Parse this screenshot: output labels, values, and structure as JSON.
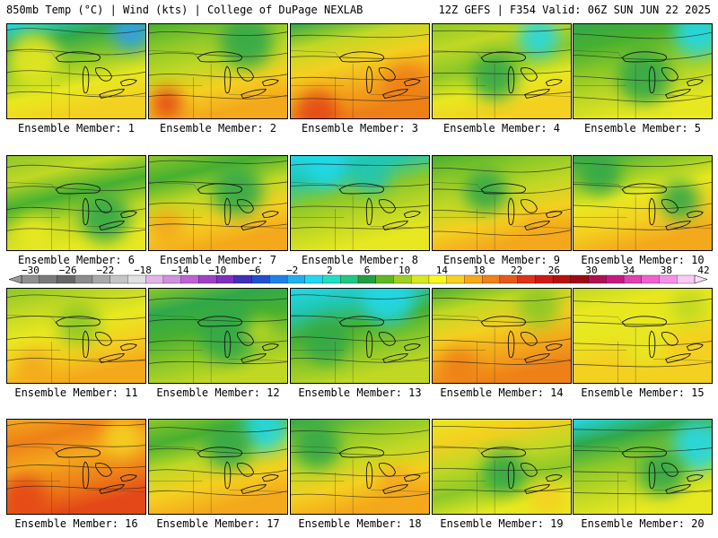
{
  "header": {
    "left": "850mb Temp (°C) | Wind (kts) | College of DuPage NEXLAB",
    "right": "12Z GEFS | F354 Valid: 06Z SUN JUN 22 2025"
  },
  "panels": [
    {
      "label": "Ensemble Member: 1"
    },
    {
      "label": "Ensemble Member: 2"
    },
    {
      "label": "Ensemble Member: 3"
    },
    {
      "label": "Ensemble Member: 4"
    },
    {
      "label": "Ensemble Member: 5"
    },
    {
      "label": "Ensemble Member: 6"
    },
    {
      "label": "Ensemble Member: 7"
    },
    {
      "label": "Ensemble Member: 8"
    },
    {
      "label": "Ensemble Member: 9"
    },
    {
      "label": "Ensemble Member: 10"
    },
    {
      "label": "Ensemble Member: 11"
    },
    {
      "label": "Ensemble Member: 12"
    },
    {
      "label": "Ensemble Member: 13"
    },
    {
      "label": "Ensemble Member: 14"
    },
    {
      "label": "Ensemble Member: 15"
    },
    {
      "label": "Ensemble Member: 16"
    },
    {
      "label": "Ensemble Member: 17"
    },
    {
      "label": "Ensemble Member: 18"
    },
    {
      "label": "Ensemble Member: 19"
    },
    {
      "label": "Ensemble Member: 20"
    }
  ],
  "colorbar": {
    "ticks": [
      -30,
      -26,
      -22,
      -18,
      -14,
      -10,
      -6,
      -2,
      2,
      6,
      10,
      14,
      18,
      22,
      26,
      30,
      34,
      38,
      42
    ],
    "colors": [
      "#909090",
      "#7a7a7a",
      "#666666",
      "#8c8c8c",
      "#a8a8a8",
      "#c4c4c4",
      "#e0e0e0",
      "#e4b4e8",
      "#d090e0",
      "#c060d8",
      "#a040c8",
      "#8030c0",
      "#4030b8",
      "#2050d0",
      "#2080e8",
      "#20b0f0",
      "#20d8f0",
      "#20e0c0",
      "#20c880",
      "#20a040",
      "#60b820",
      "#a0d020",
      "#d8e820",
      "#f8f820",
      "#f8d020",
      "#f8a818",
      "#f08018",
      "#e85818",
      "#e03018",
      "#d01818",
      "#b81010",
      "#a00818",
      "#b01050",
      "#c81880",
      "#e040b0",
      "#f060d0",
      "#f890e8",
      "#fcc8f4"
    ]
  }
}
